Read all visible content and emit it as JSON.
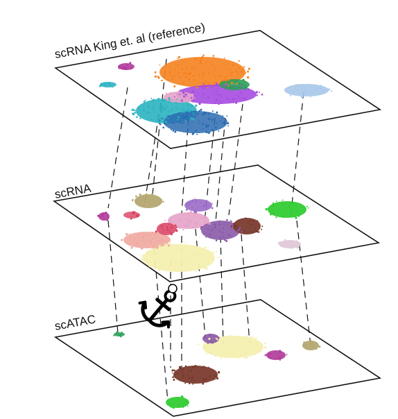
{
  "layers": [
    {
      "id": "reference",
      "label": "scRNA  King et. al (reference)"
    },
    {
      "id": "scrna",
      "label": "scRNA"
    },
    {
      "id": "scatac",
      "label": "scATAC"
    }
  ],
  "icons": {
    "anchor": "anchor-icon"
  },
  "palette": {
    "orange": "#f5821f",
    "purple": "#a64ce0",
    "teal": "#2bb3c0",
    "blue": "#2a6bb0",
    "green": "#2e9e5a",
    "light_blue": "#a9c8ea",
    "pink": "#e6a3c8",
    "magenta": "#b03a9a",
    "tan": "#b5a872",
    "bright_green": "#33cc33",
    "brown": "#7a3b2e",
    "cream": "#f4efb0",
    "salmon": "#f0a8a0",
    "violet": "#8a5aa8",
    "crimson": "#d94060",
    "lavender": "#e0c8d8"
  }
}
